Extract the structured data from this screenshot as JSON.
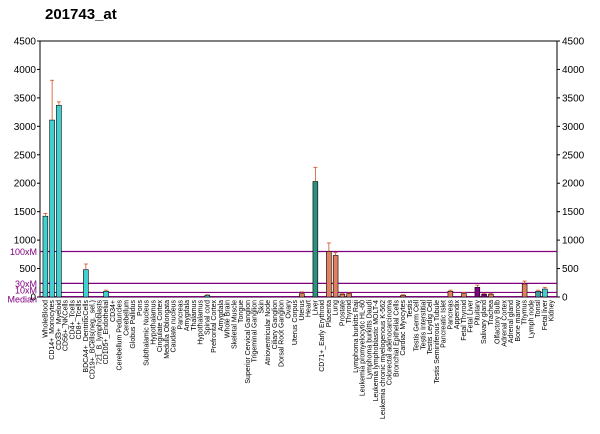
{
  "chart_data": {
    "type": "bar",
    "title": "201743_at",
    "ylim": [
      0,
      4500
    ],
    "yticks": [
      0,
      500,
      1000,
      1500,
      2000,
      2500,
      3000,
      3500,
      4000,
      4500
    ],
    "yticks_right": [
      0,
      500,
      1000,
      1500,
      2000,
      2500,
      3000,
      3500,
      4000,
      4500
    ],
    "reference_lines": [
      {
        "label": "100xM",
        "value": 800,
        "color": "#800080"
      },
      {
        "label": "30xM",
        "value": 240,
        "color": "#800080"
      },
      {
        "label": "10xM",
        "value": 80,
        "color": "#800080"
      },
      {
        "label": "Median",
        "value": 8,
        "color": "#800080"
      }
    ],
    "categories": [
      "WholeBlood",
      "CD14+_Monocytes",
      "CD33+_Myeloid",
      "CD56+_NKCells",
      "CD4+_Tcells",
      "CD8+_Tcells",
      "BDCA4+_DentriticCells",
      "CD19+_BCells(neg._sel.)",
      "721_B_lymphoblasts",
      "CD105+_Endothelial",
      "CD34+",
      "Cerebellum Peduncles",
      "Cerebellum",
      "Globus Pallidus",
      "Pons",
      "Subthalamic Nucleus",
      "Hypothalamus",
      "Cingulate Cortex",
      "Medulla Oblongata",
      "Caudate nucleus",
      "Pancreas",
      "Amygdala",
      "Thalamus",
      "Hypothalamus",
      "Spinal cord",
      "Prefrontal Cortex",
      "Amygdala",
      "Whole Brain",
      "Skeletal Muscle",
      "Tongue",
      "Superior Cervical Ganglion",
      "Trigeminal Ganglion",
      "Skin",
      "Atrioventricular Node",
      "Ciliary Ganglion",
      "Dorsal Root Ganglion",
      "Ovary",
      "Uterus Corpus",
      "Uterus",
      "Heart",
      "Liver",
      "CD71+_Early Erythroid",
      "Placenta",
      "Lung",
      "Prostate",
      "Thyroid",
      "Lymphoma burkitts Raji",
      "Leukemia promyelocytic HL-60",
      "Lymphoma burkitts Daudi",
      "Leukemia lymphoblastic MOLT-4",
      "Leukemia chronic myelogenous K-562",
      "Colorectal adenocarcinoma",
      "Bronchial Epithelial Cells",
      "Cardiac Myocytes",
      "Testis",
      "Testis Germ Cell",
      "Testis Interstitial",
      "Testis Leydig Cell",
      "Testis Seminiferous Tubule",
      "Pancreatic Islet",
      "Pancreas",
      "Appendix",
      "Fetal Thyroid",
      "Fetal Liver",
      "Pituitary",
      "Salivary gland",
      "Trachea",
      "Olfactory Bulb",
      "Adrenal Cortex",
      "Adrenal gland",
      "Bone marrow",
      "Thymus",
      "Lymph node",
      "Tonsil",
      "Fetal liver",
      "Kidney"
    ],
    "values": [
      1420,
      3110,
      3370,
      0,
      0,
      0,
      480,
      0,
      0,
      100,
      0,
      0,
      0,
      0,
      0,
      0,
      0,
      0,
      0,
      0,
      0,
      0,
      0,
      0,
      30,
      0,
      0,
      0,
      0,
      0,
      0,
      0,
      0,
      0,
      0,
      0,
      0,
      0,
      60,
      0,
      2030,
      0,
      800,
      730,
      50,
      60,
      0,
      0,
      0,
      0,
      0,
      0,
      0,
      30,
      0,
      0,
      0,
      0,
      0,
      0,
      100,
      0,
      60,
      0,
      170,
      50,
      50,
      0,
      0,
      0,
      0,
      230,
      0,
      100,
      140,
      0
    ],
    "errors": [
      50,
      700,
      60,
      0,
      0,
      0,
      100,
      0,
      0,
      20,
      0,
      0,
      0,
      0,
      0,
      0,
      0,
      0,
      0,
      0,
      0,
      0,
      0,
      0,
      10,
      0,
      0,
      0,
      0,
      0,
      0,
      0,
      0,
      0,
      0,
      0,
      0,
      0,
      30,
      0,
      250,
      0,
      150,
      50,
      10,
      10,
      0,
      0,
      0,
      0,
      0,
      0,
      0,
      10,
      0,
      0,
      0,
      0,
      0,
      0,
      20,
      0,
      20,
      0,
      40,
      10,
      10,
      0,
      0,
      0,
      0,
      50,
      0,
      20,
      30,
      0
    ],
    "colors": [
      "#40d0d0",
      "#40d0d0",
      "#40d0d0",
      "#40d0d0",
      "#40d0d0",
      "#40d0d0",
      "#40d0d0",
      "#40d0d0",
      "#40d0d0",
      "#40d0d0",
      "#40d0d0",
      "#40d0d0",
      "#40d0d0",
      "#40d0d0",
      "#40d0d0",
      "#40d0d0",
      "#40d0d0",
      "#40d0d0",
      "#40d0d0",
      "#40d0d0",
      "#40d0d0",
      "#40d0d0",
      "#40d0d0",
      "#40d0d0",
      "#40d0d0",
      "#40d0d0",
      "#40d0d0",
      "#40d0d0",
      "#40d0d0",
      "#40d0d0",
      "#40d0d0",
      "#40d0d0",
      "#40d0d0",
      "#40d0d0",
      "#40d0d0",
      "#40d0d0",
      "#40d0d0",
      "#40d0d0",
      "#e08060",
      "#40d0d0",
      "#2f8f80",
      "#e08060",
      "#e08060",
      "#e08060",
      "#e08060",
      "#e08060",
      "#e08060",
      "#e08060",
      "#e08060",
      "#e08060",
      "#e08060",
      "#e08060",
      "#e08060",
      "#e08060",
      "#e08060",
      "#e08060",
      "#e08060",
      "#e08060",
      "#e08060",
      "#e08060",
      "#e08060",
      "#e08060",
      "#e08060",
      "#e08060",
      "#800080",
      "#800080",
      "#e08060",
      "#e08060",
      "#e08060",
      "#e08060",
      "#e08060",
      "#e08060",
      "#e08060",
      "#40a0a0",
      "#40d0d0",
      "#40d0d0"
    ]
  }
}
